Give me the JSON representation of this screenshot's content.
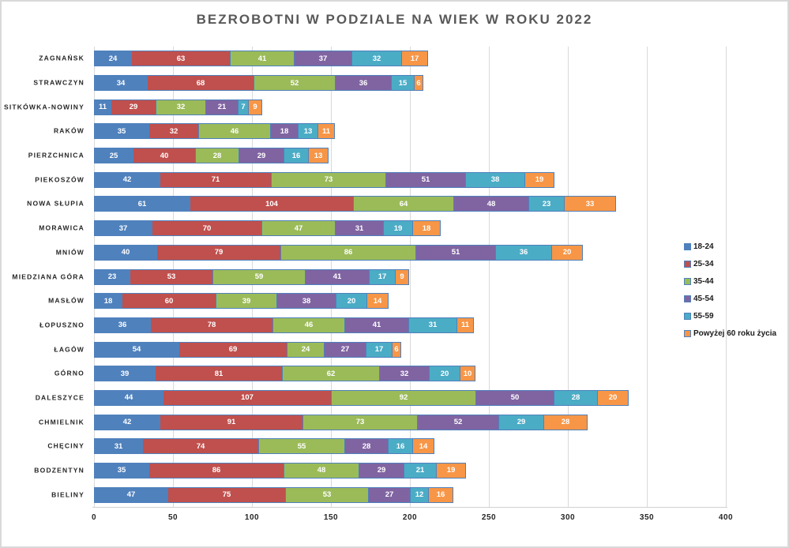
{
  "chart_data": {
    "type": "bar",
    "orientation": "horizontal",
    "stacked": true,
    "title": "BEZROBOTNI W PODZIALE NA WIEK W ROKU 2022",
    "xlabel": "",
    "ylabel": "",
    "xlim": [
      0,
      400
    ],
    "x_ticks": [
      0,
      50,
      100,
      150,
      200,
      250,
      300,
      350,
      400
    ],
    "grid": true,
    "legend_position": "right",
    "bar_value_labels": true,
    "value_label_color": "#ffffff",
    "segment_border_color": "#4F81BD",
    "gridline_color": "#d9d9d9",
    "title_color": "#595959",
    "categories": [
      "ZAGNAŃSK",
      "STRAWCZYN",
      "SITKÓWKA-NOWINY",
      "RAKÓW",
      "PIERZCHNICA",
      "PIEKOSZÓW",
      "NOWA SŁUPIA",
      "MORAWICA",
      "MNIÓW",
      "MIEDZIANA GÓRA",
      "MASŁÓW",
      "ŁOPUSZNO",
      "ŁAGÓW",
      "GÓRNO",
      "DALESZYCE",
      "CHMIELNIK",
      "CHĘCINY",
      "BODZENTYN",
      "BIELINY"
    ],
    "series": [
      {
        "name": "18-24",
        "color": "#4F81BD",
        "values": [
          24,
          34,
          11,
          35,
          25,
          42,
          61,
          37,
          40,
          23,
          18,
          36,
          54,
          39,
          44,
          42,
          31,
          35,
          47
        ]
      },
      {
        "name": "25-34",
        "color": "#C0504D",
        "values": [
          63,
          68,
          29,
          32,
          40,
          71,
          104,
          70,
          79,
          53,
          60,
          78,
          69,
          81,
          107,
          91,
          74,
          86,
          75
        ]
      },
      {
        "name": "35-44",
        "color": "#9BBB59",
        "values": [
          41,
          52,
          32,
          46,
          28,
          73,
          64,
          47,
          86,
          59,
          39,
          46,
          24,
          62,
          92,
          73,
          55,
          48,
          53
        ]
      },
      {
        "name": "45-54",
        "color": "#8064A2",
        "values": [
          37,
          36,
          21,
          18,
          29,
          51,
          48,
          31,
          51,
          41,
          38,
          41,
          27,
          32,
          50,
          52,
          28,
          29,
          27
        ]
      },
      {
        "name": "55-59",
        "color": "#4BACC6",
        "values": [
          32,
          15,
          7,
          13,
          16,
          38,
          23,
          19,
          36,
          17,
          20,
          31,
          17,
          20,
          28,
          29,
          16,
          21,
          12
        ]
      },
      {
        "name": "Powyżej 60 roku życia",
        "color": "#F79646",
        "values": [
          17,
          6,
          9,
          11,
          13,
          19,
          33,
          18,
          20,
          9,
          14,
          11,
          6,
          10,
          20,
          28,
          14,
          19,
          16
        ]
      }
    ]
  }
}
